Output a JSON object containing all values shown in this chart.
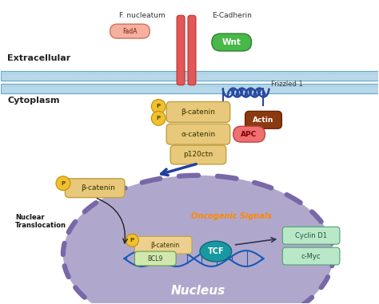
{
  "bg_color": "#ffffff",
  "extracellular_label": "Extracellular",
  "cytoplasm_label": "Cytoplasm",
  "f_nucleatum_label": "F. nucleatum",
  "fad_a_label": "FadA",
  "e_cadherin_label": "E-Cadherin",
  "wnt_label": "Wnt",
  "frizzled_label": "Frizzled 1",
  "beta_catenin_label": "β-catenin",
  "alpha_catenin_label": "α-catenin",
  "p120ctn_label": "p120ctn",
  "actin_label": "Actin",
  "apc_label": "APC",
  "nucleus_label": "Nucleus",
  "oncogenic_label": "Oncogenic Signals",
  "bcl9_label": "BCL9",
  "tcf_label": "TCF",
  "cyclin_d1_label": "Cyclin D1",
  "c_myc_label": "c-Myc",
  "nuclear_translocation_label": "Nuclear\nTranslocation",
  "membrane_color_fill": "#b8d8ea",
  "membrane_color_edge": "#6aaCc8",
  "nucleus_fill": "#b0a8cc",
  "nucleus_edge": "#7868a8",
  "golden_fill": "#e8c87a",
  "golden_edge": "#c0a040",
  "actin_fill": "#8b3a10",
  "apc_fill": "#f07070",
  "apc_edge": "#c04040",
  "wnt_fill": "#48b848",
  "wnt_edge": "#308030",
  "fusa_fill": "#f5b0a0",
  "fusa_edge": "#d07060",
  "tcf_fill": "#1898a0",
  "cyclin_fill": "#b8e8c8",
  "cyclin_edge": "#50a070",
  "bcl9_fill": "#d0e8b0",
  "bcl9_edge": "#60a040",
  "dna_color": "#1858b8",
  "arrow_blue": "#2040a0",
  "p_fill": "#f0c030",
  "p_edge": "#c09000"
}
